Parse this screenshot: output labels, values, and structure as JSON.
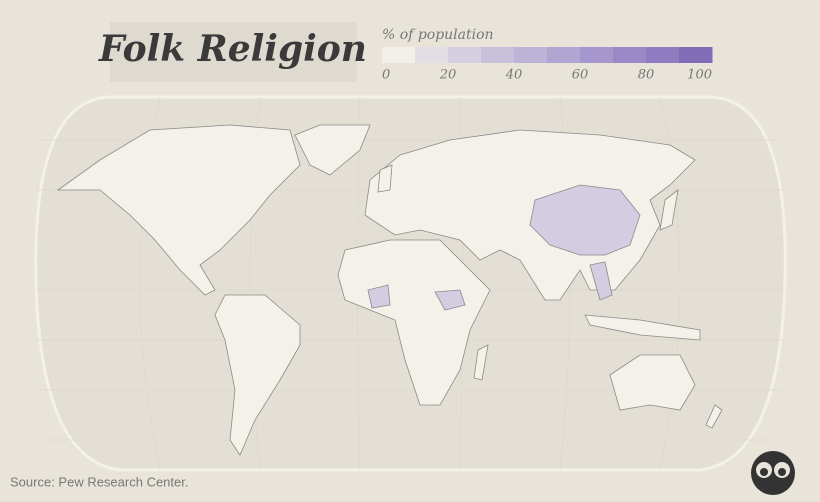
{
  "title": "Folk Religion",
  "legend": {
    "title": "% of population",
    "range": [
      0,
      100
    ],
    "ticks": [
      0,
      20,
      40,
      60,
      80,
      100
    ],
    "colors": [
      "#f2f0e8",
      "#e2dee4",
      "#d5cfe0",
      "#c9c1dc",
      "#bdb3d7",
      "#b1a5d2",
      "#a597cd",
      "#998ac7",
      "#8d7cc0",
      "#7f6db8"
    ]
  },
  "source": "Source: Pew Research Center."
}
